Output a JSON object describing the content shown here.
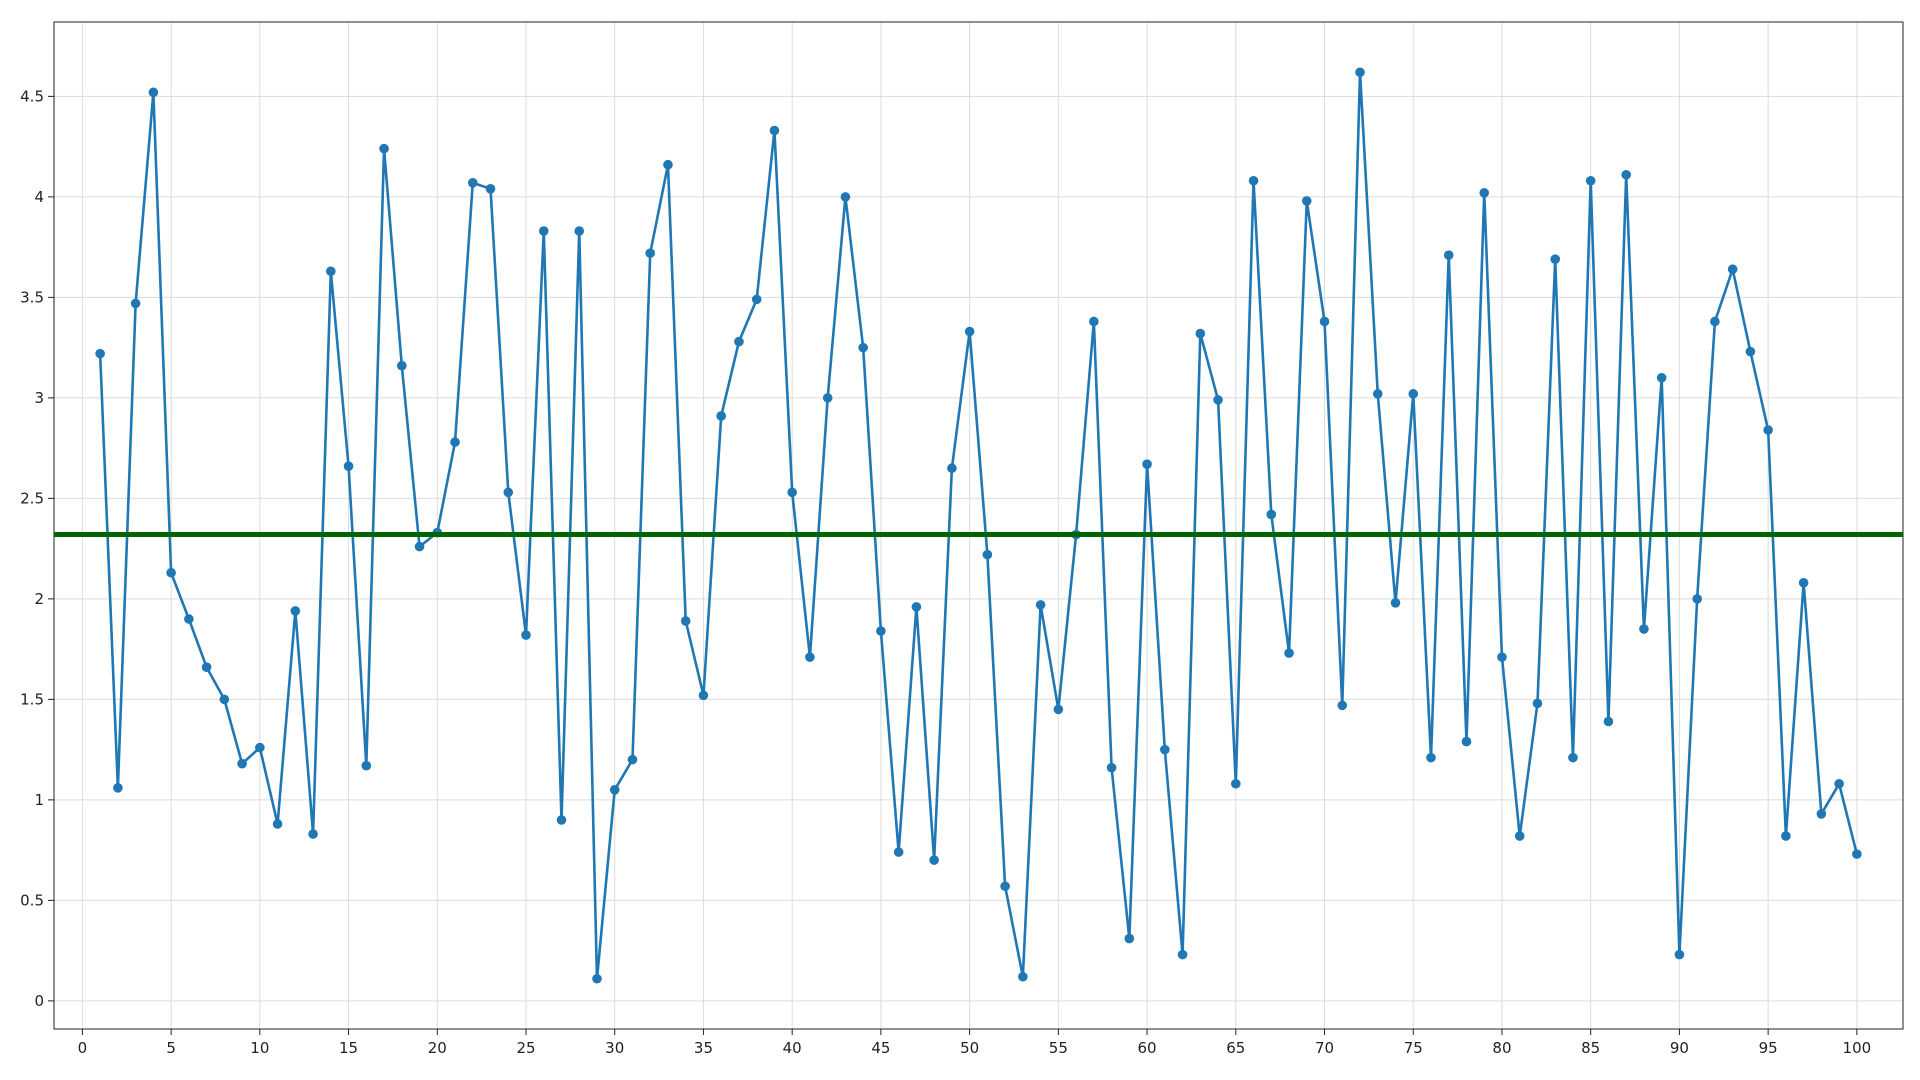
{
  "chart_data": {
    "type": "line",
    "x": [
      1,
      2,
      3,
      4,
      5,
      6,
      7,
      8,
      9,
      10,
      11,
      12,
      13,
      14,
      15,
      16,
      17,
      18,
      19,
      20,
      21,
      22,
      23,
      24,
      25,
      26,
      27,
      28,
      29,
      30,
      31,
      32,
      33,
      34,
      35,
      36,
      37,
      38,
      39,
      40,
      41,
      42,
      43,
      44,
      45,
      46,
      47,
      48,
      49,
      50,
      51,
      52,
      53,
      54,
      55,
      56,
      57,
      58,
      59,
      60,
      61,
      62,
      63,
      64,
      65,
      66,
      67,
      68,
      69,
      70,
      71,
      72,
      73,
      74,
      75,
      76,
      77,
      78,
      79,
      80,
      81,
      82,
      83,
      84,
      85,
      86,
      87,
      88,
      89,
      90,
      91,
      92,
      93,
      94,
      95,
      96,
      97,
      98,
      99,
      100
    ],
    "series": [
      {
        "color": "#1f77b4",
        "values": [
          3.22,
          1.06,
          3.47,
          4.52,
          2.13,
          1.9,
          1.66,
          1.5,
          1.18,
          1.26,
          0.88,
          1.94,
          0.83,
          3.63,
          2.66,
          1.17,
          4.24,
          3.16,
          2.26,
          2.33,
          2.78,
          4.07,
          4.04,
          2.53,
          1.82,
          3.83,
          0.9,
          3.83,
          0.11,
          1.05,
          1.2,
          3.72,
          4.16,
          1.89,
          1.52,
          2.91,
          3.28,
          3.49,
          4.33,
          2.53,
          1.71,
          3.0,
          4.0,
          3.25,
          1.84,
          0.74,
          1.96,
          0.7,
          2.65,
          3.33,
          2.22,
          0.57,
          0.12,
          1.97,
          1.45,
          2.32,
          3.38,
          1.16,
          0.31,
          2.67,
          1.25,
          0.23,
          3.32,
          2.99,
          1.08,
          4.08,
          2.42,
          1.73,
          3.98,
          3.38,
          1.47,
          4.62,
          3.02,
          1.98,
          3.02,
          1.21,
          3.71,
          1.29,
          4.02,
          1.71,
          0.82,
          1.48,
          3.69,
          1.21,
          4.08,
          1.39,
          4.11,
          1.85,
          3.1,
          0.23,
          2.0,
          3.38,
          3.64,
          3.23,
          2.84,
          0.82,
          2.08,
          0.93,
          1.08,
          0.73
        ]
      }
    ],
    "hline": {
      "value": 2.32,
      "color": "#006400"
    },
    "xlim": [
      -1.6,
      102.6
    ],
    "ylim": [
      -0.14,
      4.87
    ],
    "xticks": [
      0,
      5,
      10,
      15,
      20,
      25,
      30,
      35,
      40,
      45,
      50,
      55,
      60,
      65,
      70,
      75,
      80,
      85,
      90,
      95,
      100
    ],
    "yticks": [
      0,
      0.5,
      1,
      1.5,
      2,
      2.5,
      3,
      3.5,
      4,
      4.5
    ],
    "grid": true
  }
}
